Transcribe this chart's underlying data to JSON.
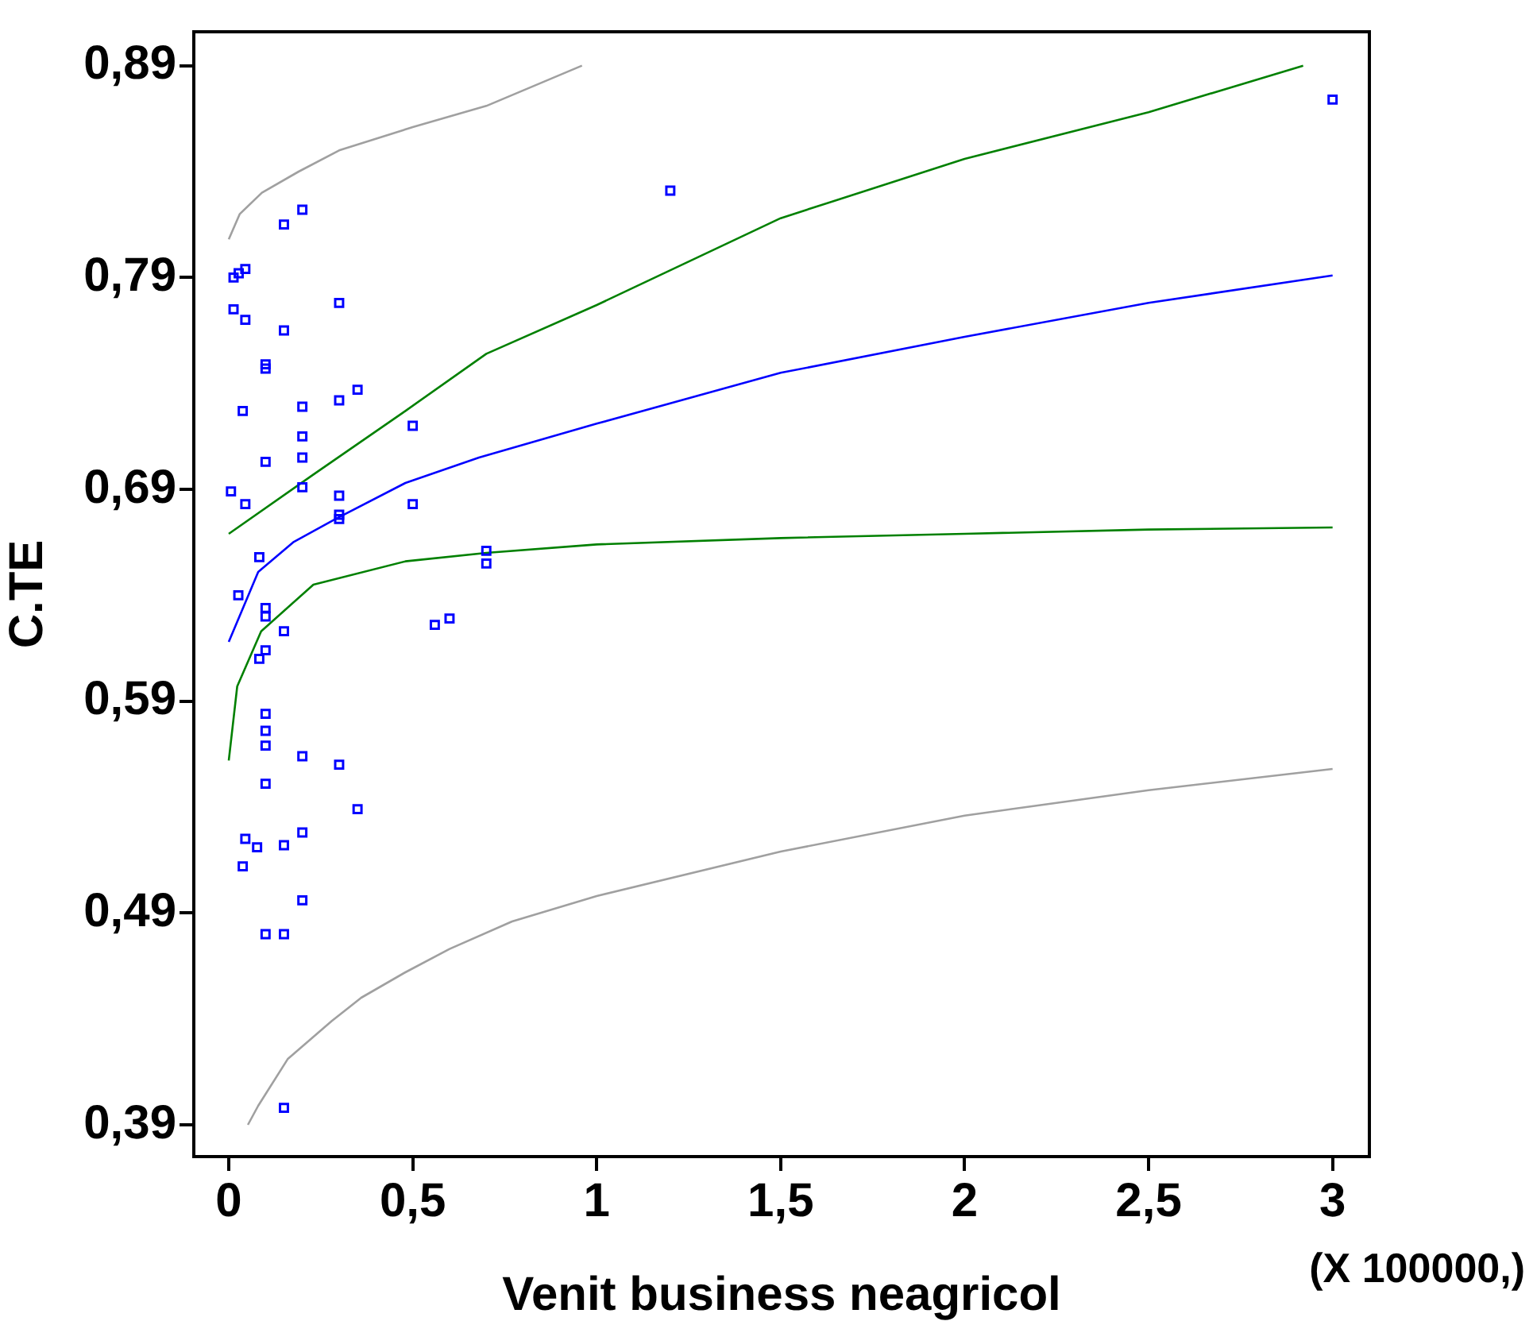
{
  "chart_data": {
    "type": "scatter",
    "xlabel": "Venit business neagricol",
    "ylabel": "C.TE",
    "annotations": [
      "(X 100000,)"
    ],
    "xlim": [
      -0.095,
      3.1
    ],
    "ylim": [
      0.375,
      0.906
    ],
    "xticks": [
      0,
      {
        "value": 0.5,
        "label": "0,5"
      },
      1,
      {
        "value": 1.5,
        "label": "1,5"
      },
      2,
      {
        "value": 2.5,
        "label": "2,5"
      },
      3
    ],
    "yticks": [
      {
        "value": 0.39,
        "label": "0,39"
      },
      {
        "value": 0.49,
        "label": "0,49"
      },
      {
        "value": 0.59,
        "label": "0,59"
      },
      {
        "value": 0.69,
        "label": "0,69"
      },
      {
        "value": 0.79,
        "label": "0,79"
      },
      {
        "value": 0.89,
        "label": "0,89"
      }
    ],
    "grid": false,
    "legend": false,
    "marker": "square",
    "series": [
      {
        "color": "#0000ff",
        "x": [
          0.2,
          0.15,
          0.013,
          0.027,
          0.045,
          0.3,
          0.013,
          0.045,
          0.15,
          0.1,
          0.1,
          0.35,
          0.3,
          0.038,
          0.2,
          0.5,
          0.2,
          0.2,
          0.1,
          0.2,
          0.006,
          0.3,
          0.045,
          0.5,
          0.3,
          0.3,
          0.7,
          0.7,
          0.083,
          0.026,
          0.1,
          0.1,
          0.56,
          0.6,
          0.15,
          0.1,
          0.083,
          0.1,
          0.1,
          0.1,
          0.2,
          0.3,
          0.1,
          0.35,
          0.045,
          0.077,
          0.15,
          0.2,
          0.038,
          0.2,
          0.1,
          0.15,
          0.15,
          1.2,
          3
        ],
        "values": [
          0.822,
          0.815,
          0.79,
          0.792,
          0.794,
          0.778,
          0.775,
          0.77,
          0.765,
          0.749,
          0.747,
          0.737,
          0.732,
          0.727,
          0.729,
          0.72,
          0.715,
          0.705,
          0.703,
          0.691,
          0.689,
          0.687,
          0.683,
          0.683,
          0.678,
          0.676,
          0.661,
          0.655,
          0.658,
          0.64,
          0.634,
          0.63,
          0.626,
          0.629,
          0.623,
          0.614,
          0.61,
          0.584,
          0.576,
          0.569,
          0.564,
          0.56,
          0.551,
          0.539,
          0.525,
          0.521,
          0.522,
          0.528,
          0.512,
          0.496,
          0.48,
          0.48,
          0.398,
          0.831,
          0.874
        ]
      },
      {
        "type": "line",
        "color": "#0000ff",
        "marker": "none",
        "x": [
          0,
          0.08,
          0.175,
          0.29,
          0.48,
          0.68,
          1,
          1.5,
          2,
          2.5,
          3
        ],
        "values": [
          0.618,
          0.651,
          0.665,
          0.676,
          0.693,
          0.705,
          0.721,
          0.745,
          0.762,
          0.778,
          0.791
        ]
      },
      {
        "type": "line",
        "color": "#008000",
        "marker": "none",
        "x": [
          0,
          0.23,
          0.48,
          0.7,
          1,
          1.5,
          2,
          2.5,
          2.92
        ],
        "values": [
          0.669,
          0.697,
          0.727,
          0.754,
          0.777,
          0.818,
          0.846,
          0.868,
          0.89
        ]
      },
      {
        "type": "line",
        "color": "#008000",
        "marker": "none",
        "x": [
          0,
          0.023,
          0.088,
          0.23,
          0.48,
          0.7,
          1,
          1.5,
          2,
          2.5,
          3
        ],
        "values": [
          0.562,
          0.597,
          0.623,
          0.645,
          0.656,
          0.66,
          0.664,
          0.667,
          0.669,
          0.671,
          0.672
        ]
      },
      {
        "type": "line",
        "color": "#a0a0a0",
        "marker": "none",
        "x": [
          0,
          0.03,
          0.09,
          0.19,
          0.3,
          0.5,
          0.7,
          0.96
        ],
        "values": [
          0.808,
          0.82,
          0.83,
          0.84,
          0.85,
          0.861,
          0.871,
          0.89
        ]
      },
      {
        "type": "line",
        "color": "#a0a0a0",
        "marker": "none",
        "x": [
          0.052,
          0.08,
          0.16,
          0.28,
          0.36,
          0.48,
          0.6,
          0.77,
          1,
          1.5,
          2,
          2.5,
          3
        ],
        "values": [
          0.39,
          0.399,
          0.421,
          0.439,
          0.45,
          0.462,
          0.473,
          0.486,
          0.498,
          0.519,
          0.536,
          0.548,
          0.558
        ]
      }
    ]
  }
}
